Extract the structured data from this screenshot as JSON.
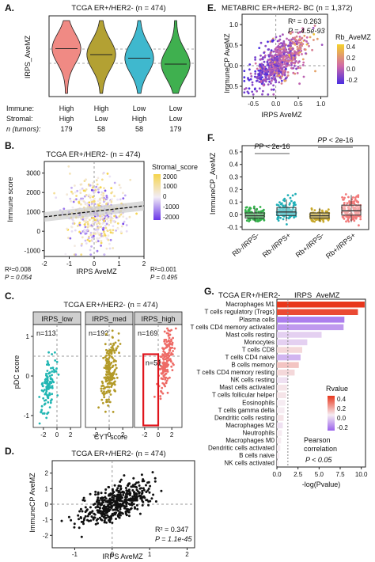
{
  "chart_data": [
    {
      "panel": "A.",
      "type": "violin",
      "title": "TCGA ER+/HER2- (n = 474)",
      "ylabel": "IRPS_AveMZ",
      "row_labels": [
        "Immune:",
        "Stromal:",
        "n (tumors):"
      ],
      "groups": [
        {
          "immune": "High",
          "stromal": "High",
          "n": "179",
          "color": "#f08a84",
          "median": 0.35
        },
        {
          "immune": "High",
          "stromal": "Low",
          "n": "58",
          "color": "#b3a133",
          "median": 0.1
        },
        {
          "immune": "Low",
          "stromal": "High",
          "n": "58",
          "color": "#3fb8ce",
          "median": -0.05
        },
        {
          "immune": "Low",
          "stromal": "Low",
          "n": "179",
          "color": "#3fb04f",
          "median": -0.3
        }
      ]
    },
    {
      "panel": "B.",
      "type": "scatter",
      "title": "TCGA ER+/HER2- (n = 474)",
      "xlabel": "IRPS AveMZ",
      "ylabel": "Immune score",
      "legend_title": "Stromal_score",
      "legend_ticks": [
        "2000",
        "1000",
        "0",
        "-1000",
        "-2000"
      ],
      "xticks": [
        "-2",
        "-1",
        "0",
        "1",
        "2"
      ],
      "yticks": [
        "-1000",
        "0",
        "1000",
        "2000",
        "3000"
      ],
      "xlim": [
        -2,
        2
      ],
      "ylim": [
        -1300,
        3600
      ],
      "stat_left": {
        "r2": "R²=0.008",
        "p": "P = 0.054"
      },
      "stat_right": {
        "r2": "R²=0.001",
        "p": "P = 0.495"
      },
      "n_points": 474
    },
    {
      "panel": "C.",
      "type": "scatter",
      "title": "TCGA ER+/HER2- (n = 474)",
      "xlabel": "CYT score",
      "ylabel": "pDC score",
      "facets": [
        {
          "label": "IRPS_low",
          "n": "n=113",
          "color": "#21b6b3"
        },
        {
          "label": "IRPS_med",
          "n": "n=192",
          "color": "#b39a28"
        },
        {
          "label": "IRPS_high",
          "n": "n=169",
          "color": "#ee6b66",
          "highlight_n": "n=51"
        }
      ],
      "xticks": [
        "-2",
        "0",
        "2"
      ],
      "yticks": [
        "-1",
        "0",
        "1"
      ]
    },
    {
      "panel": "D.",
      "type": "scatter",
      "title": "TCGA ER+/HER2- (n = 474)",
      "xlabel": "IRPS AveMZ",
      "ylabel": "ImmuneCP AveMZ",
      "xticks": [
        "-1",
        "0",
        "1",
        "2"
      ],
      "yticks": [
        "-2",
        "-1",
        "0",
        "1",
        "2"
      ],
      "xlim": [
        -1.6,
        2.2
      ],
      "ylim": [
        -2.8,
        2.8
      ],
      "r2": "R² = 0.347",
      "p": "P = 1.1e-45",
      "n_points": 474
    },
    {
      "panel": "E.",
      "type": "scatter",
      "title": "METABRIC  ER+/HER2- BC (n = 1,372)",
      "xlabel": "IRPS AveMZ",
      "ylabel": "ImmuneCP AveMZ",
      "legend_title": "Rb_AveMZ",
      "legend_ticks": [
        "0.4",
        "0.2",
        "0.0",
        "-0.2"
      ],
      "xticks": [
        "-0.5",
        "0.0",
        "0.5",
        "1.0"
      ],
      "yticks": [
        "-0.5",
        "0.0",
        "0.5",
        "1.0"
      ],
      "xlim": [
        -0.75,
        1.15
      ],
      "ylim": [
        -0.75,
        1.25
      ],
      "r2": "R² = 0.263",
      "p": "P = 4.5e-93"
    },
    {
      "panel": "F.",
      "type": "box",
      "ylabel": "ImmuneCP_AveMZ",
      "categories": [
        "Rb-/IRPS-",
        "Rb-/IRPS+",
        "Rb+/IRPS-",
        "Rb+/IRPS+"
      ],
      "colors": [
        "#33b04a",
        "#21b0b8",
        "#c8a82a",
        "#f27a7a"
      ],
      "yticks": [
        "0.5",
        "0.4",
        "0.3",
        "0.2",
        "0.1",
        "0.0",
        "-0.1"
      ],
      "ylim": [
        -0.12,
        0.55
      ],
      "comparisons": [
        {
          "text": "P < 2e-16"
        },
        {
          "text": "P < 2e-16"
        }
      ],
      "medians": [
        -0.01,
        0.02,
        -0.01,
        0.03
      ]
    },
    {
      "panel": "G.",
      "type": "bar",
      "title": "TCGA ER+/HER2-",
      "subtitle": "IRPS_AveMZ",
      "xlabel": "-log(Pvalue)",
      "xticks": [
        "0.0",
        "2.5",
        "5.0",
        "7.5",
        "10.0"
      ],
      "xlim": [
        0,
        10.5
      ],
      "legend_title": "Rvalue",
      "legend_ticks": [
        "0.4",
        "0.2",
        "0.0",
        "-0.2"
      ],
      "note1": "Pearson",
      "note2": "correlation",
      "note3": "P < 0.05",
      "categories": [
        "Macrophages M1",
        "T cells regulatory (Tregs)",
        "Plasma cells",
        "T cells CD4 memory activated",
        "Mast cells resting",
        "Monocytes",
        "T cells CD8",
        "T cells CD4 naive",
        "B cells memory",
        "T cells CD4 memory resting",
        "NK cells resting",
        "Mast cells activated",
        "T cells follicular helper",
        "Eosinophils",
        "T cells gamma delta",
        "Dendritic cells resting",
        "Macrophages M2",
        "Neutrophils",
        "Macrophages M0",
        "Dendritic cells activated",
        "B cells naive",
        "NK cells activated"
      ],
      "values": [
        10.4,
        9.6,
        8.0,
        7.9,
        5.3,
        3.6,
        3.0,
        2.8,
        2.6,
        2.1,
        1.3,
        1.2,
        1.1,
        1.0,
        0.9,
        0.8,
        0.7,
        0.6,
        0.5,
        0.4,
        0.3,
        0.2
      ],
      "rvalues": [
        0.45,
        0.4,
        -0.2,
        -0.15,
        -0.05,
        -0.05,
        0.05,
        -0.1,
        0.1,
        0.05,
        -0.02,
        0.02,
        0.02,
        0.0,
        0.0,
        0.02,
        -0.02,
        0.0,
        0.0,
        0.0,
        0.0,
        0.0
      ],
      "threshold": 1.3
    }
  ]
}
